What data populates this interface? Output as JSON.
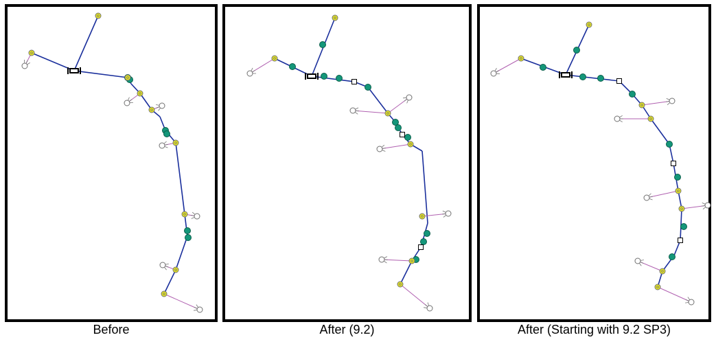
{
  "captions": {
    "before": "Before",
    "after_92": "After (9.2)",
    "after_92_sp3": "After (Starting with 9.2 SP3)"
  },
  "colors": {
    "frame": "#000000",
    "main_line": "#1a2f9c",
    "lateral_line": "#b060b0",
    "junction_fill": "#e8e820",
    "junction_stroke": "#707070",
    "fitting_fill": "#14977a",
    "fitting_stroke": "#0b5e4a",
    "service_symbol": "#707070",
    "square_fill": "#ffffff",
    "square_stroke": "#000000"
  },
  "legend_of_symbols": {
    "main_line": "line-segment",
    "lateral_line": "line-segment",
    "junction": "yellow-circle-icon",
    "fitting": "green-circle-icon",
    "service_endpoint": "fan-circle-icon",
    "valve": "valve-icon",
    "vertex": "square-vertex-icon"
  }
}
